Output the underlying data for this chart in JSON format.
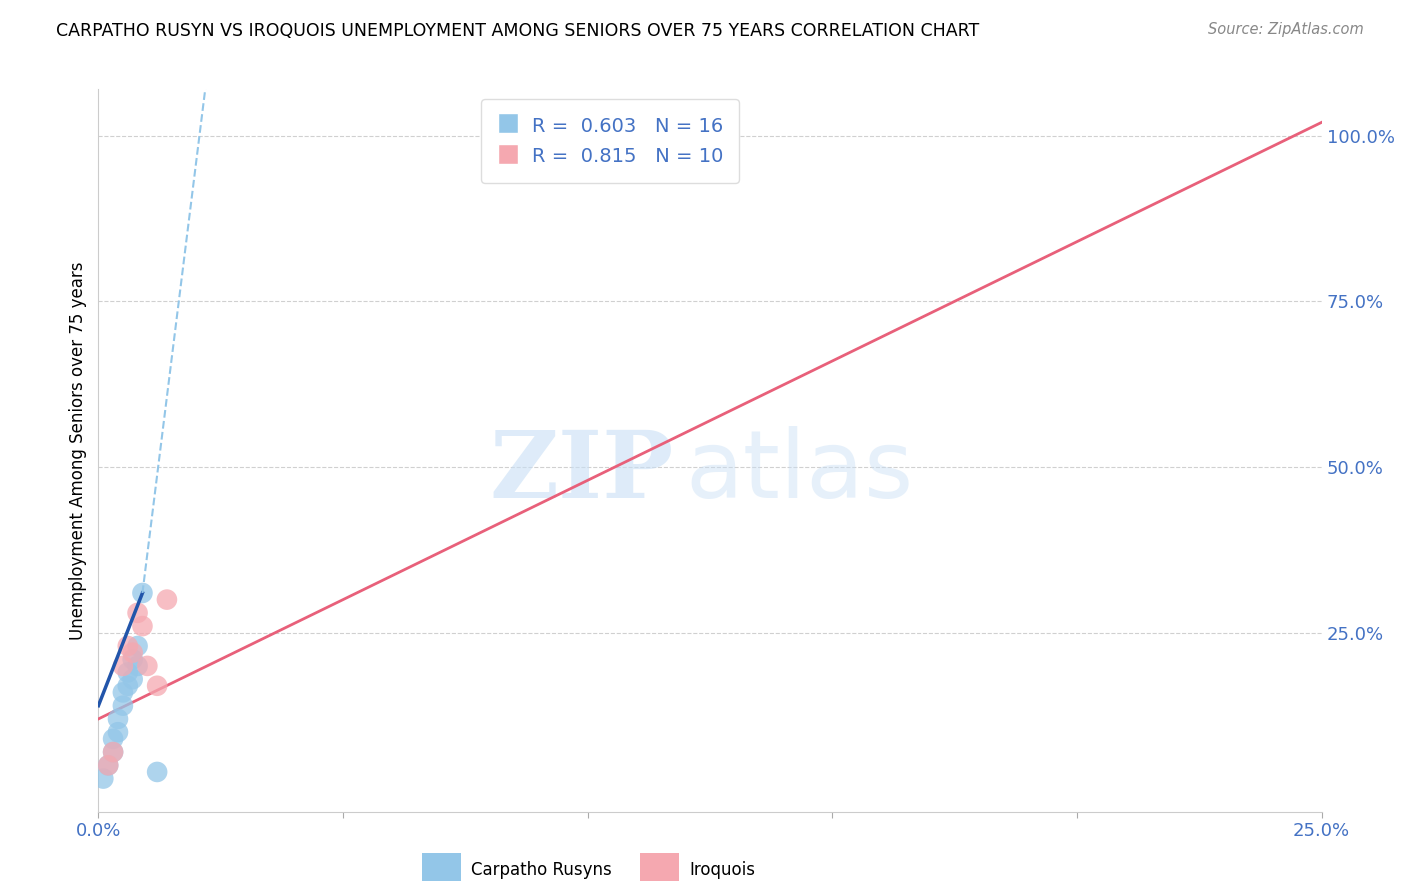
{
  "title": "CARPATHO RUSYN VS IROQUOIS UNEMPLOYMENT AMONG SENIORS OVER 75 YEARS CORRELATION CHART",
  "source": "Source: ZipAtlas.com",
  "tick_color": "#4472c4",
  "ylabel": "Unemployment Among Seniors over 75 years",
  "watermark_zip": "ZIP",
  "watermark_atlas": "atlas",
  "xlim": [
    0,
    0.25
  ],
  "ylim": [
    -0.02,
    1.07
  ],
  "x_ticks": [
    0.0,
    0.05,
    0.1,
    0.15,
    0.2,
    0.25
  ],
  "x_tick_labels": [
    "0.0%",
    "",
    "",
    "",
    "",
    "25.0%"
  ],
  "y_ticks_right": [
    0.25,
    0.5,
    0.75,
    1.0
  ],
  "y_tick_labels_right": [
    "25.0%",
    "50.0%",
    "75.0%",
    "100.0%"
  ],
  "blue_R": "0.603",
  "blue_N": "16",
  "pink_R": "0.815",
  "pink_N": "10",
  "blue_color": "#93c6e8",
  "pink_color": "#f5a8b0",
  "blue_line_solid_color": "#2255aa",
  "blue_line_dash_color": "#93c6e8",
  "pink_line_color": "#e8607a",
  "blue_scatter_x": [
    0.001,
    0.002,
    0.003,
    0.003,
    0.004,
    0.004,
    0.005,
    0.005,
    0.006,
    0.006,
    0.007,
    0.007,
    0.008,
    0.008,
    0.009,
    0.012
  ],
  "blue_scatter_y": [
    0.03,
    0.05,
    0.07,
    0.09,
    0.1,
    0.12,
    0.14,
    0.16,
    0.17,
    0.19,
    0.18,
    0.21,
    0.23,
    0.2,
    0.31,
    0.04
  ],
  "pink_scatter_x": [
    0.002,
    0.003,
    0.005,
    0.006,
    0.007,
    0.008,
    0.009,
    0.01,
    0.012,
    0.014
  ],
  "pink_scatter_y": [
    0.05,
    0.07,
    0.2,
    0.23,
    0.22,
    0.28,
    0.26,
    0.2,
    0.17,
    0.3
  ],
  "blue_solid_line_x": [
    0.0,
    0.009
  ],
  "blue_solid_line_y": [
    0.14,
    0.31
  ],
  "blue_dash_line_x": [
    0.009,
    0.022
  ],
  "blue_dash_line_y": [
    0.31,
    1.08
  ],
  "pink_line_x": [
    0.0,
    0.25
  ],
  "pink_line_y": [
    0.12,
    1.02
  ],
  "legend_label_blue": "Carpatho Rusyns",
  "legend_label_pink": "Iroquois",
  "background_color": "#ffffff",
  "grid_color": "#d0d0d0"
}
